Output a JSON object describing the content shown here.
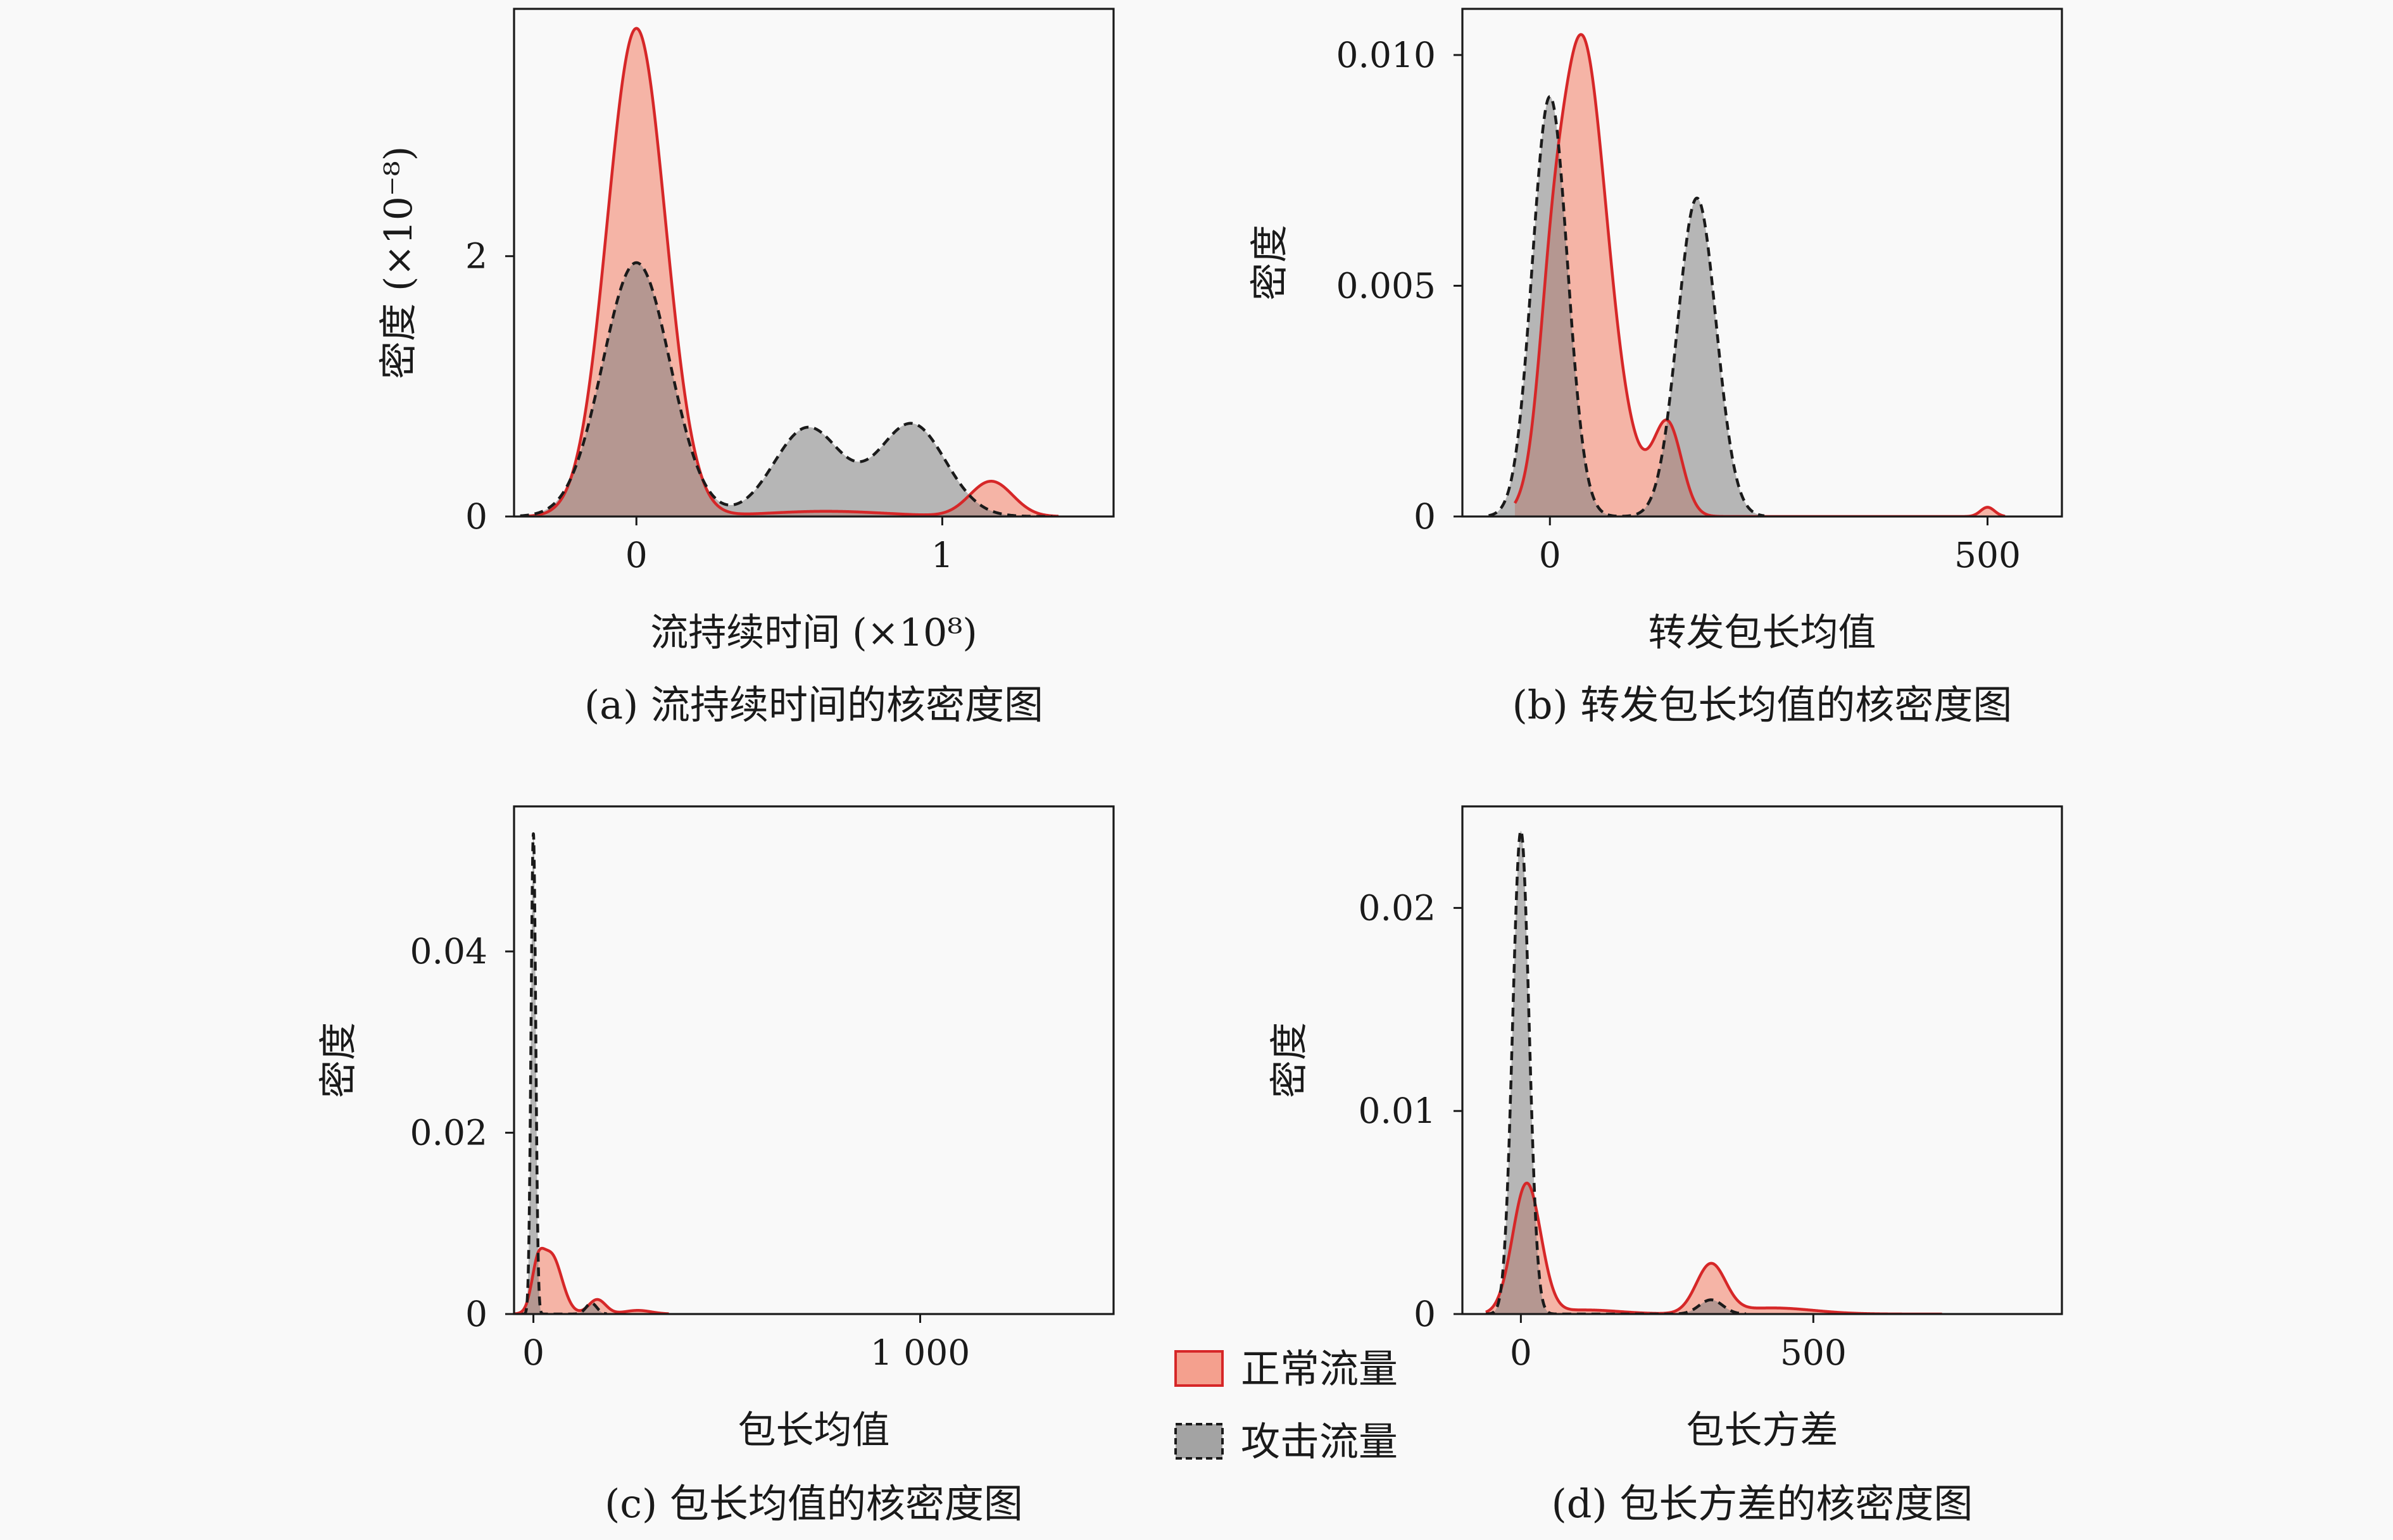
{
  "colors": {
    "normal_fill": "#f4a08e",
    "normal_line": "#d62728",
    "attack_fill": "#7f7f7f",
    "attack_line": "#1a1a1a",
    "background": "#f9f9f9"
  },
  "legend": {
    "items": [
      {
        "label": "正常流量",
        "style": "normal"
      },
      {
        "label": "攻击流量",
        "style": "attack"
      }
    ]
  },
  "chart_data": [
    {
      "type": "area",
      "caption": "(a) 流持续时间的核密度图",
      "xlabel": "流持续时间 (×10⁸)",
      "ylabel": "密度 (×10⁻⁸)",
      "xlim": [
        -0.4,
        1.56
      ],
      "ylim": [
        0,
        3.9
      ],
      "xticks": [
        {
          "v": 0,
          "label": "0"
        },
        {
          "v": 1,
          "label": "1"
        }
      ],
      "yticks": [
        {
          "v": 0,
          "label": "0"
        },
        {
          "v": 2,
          "label": "2"
        }
      ],
      "series": [
        {
          "name": "正常流量",
          "style": "normal",
          "components": [
            {
              "mu": 0.0,
              "sigma": 0.095,
              "amp": 3.75
            },
            {
              "mu": 1.16,
              "sigma": 0.07,
              "amp": 0.27
            },
            {
              "mu": 0.62,
              "sigma": 0.2,
              "amp": 0.04
            }
          ],
          "range": [
            -0.38,
            1.38
          ]
        },
        {
          "name": "攻击流量",
          "style": "attack",
          "components": [
            {
              "mu": 0.0,
              "sigma": 0.11,
              "amp": 1.95
            },
            {
              "mu": 0.56,
              "sigma": 0.11,
              "amp": 0.68
            },
            {
              "mu": 0.9,
              "sigma": 0.11,
              "amp": 0.71
            }
          ],
          "range": [
            -0.38,
            1.36
          ]
        }
      ]
    },
    {
      "type": "area",
      "caption": "(b) 转发包长均值的核密度图",
      "xlabel": "转发包长均值",
      "ylabel": "密度",
      "xlim": [
        -100,
        585
      ],
      "ylim": [
        0,
        0.011
      ],
      "xticks": [
        {
          "v": 0,
          "label": "0"
        },
        {
          "v": 500,
          "label": "500"
        }
      ],
      "yticks": [
        {
          "v": 0,
          "label": "0"
        },
        {
          "v": 0.005,
          "label": "0.005"
        },
        {
          "v": 0.01,
          "label": "0.010"
        }
      ],
      "series": [
        {
          "name": "正常流量",
          "style": "normal",
          "components": [
            {
              "mu": 36,
              "sigma": 28,
              "amp": 0.0103
            },
            {
              "mu": 0,
              "sigma": 14,
              "amp": 0.0018
            },
            {
              "mu": 135,
              "sigma": 16,
              "amp": 0.0019
            },
            {
              "mu": 90,
              "sigma": 25,
              "amp": 0.0008
            },
            {
              "mu": 500,
              "sigma": 8,
              "amp": 0.0002
            }
          ],
          "range": [
            -40,
            520
          ]
        },
        {
          "name": "攻击流量",
          "style": "attack",
          "components": [
            {
              "mu": 0,
              "sigma": 20,
              "amp": 0.0091
            },
            {
              "mu": 168,
              "sigma": 22,
              "amp": 0.0069
            }
          ],
          "range": [
            -70,
            245
          ]
        }
      ]
    },
    {
      "type": "area",
      "caption": "(c) 包长均值的核密度图",
      "xlabel": "包长均值",
      "ylabel": "密度",
      "xlim": [
        -50,
        1500
      ],
      "ylim": [
        0,
        0.056
      ],
      "xticks": [
        {
          "v": 0,
          "label": "0"
        },
        {
          "v": 1000,
          "label": "1 000"
        }
      ],
      "yticks": [
        {
          "v": 0,
          "label": "0"
        },
        {
          "v": 0.02,
          "label": "0.02"
        },
        {
          "v": 0.04,
          "label": "0.04"
        }
      ],
      "series": [
        {
          "name": "正常流量",
          "style": "normal",
          "components": [
            {
              "mu": 45,
              "sigma": 28,
              "amp": 0.0066
            },
            {
              "mu": 10,
              "sigma": 15,
              "amp": 0.0035
            },
            {
              "mu": 165,
              "sigma": 22,
              "amp": 0.0016
            },
            {
              "mu": 270,
              "sigma": 35,
              "amp": 0.0004
            }
          ],
          "range": [
            -50,
            350
          ]
        },
        {
          "name": "攻击流量",
          "style": "attack",
          "components": [
            {
              "mu": 0,
              "sigma": 6,
              "amp": 0.053
            },
            {
              "mu": 150,
              "sigma": 14,
              "amp": 0.0012
            }
          ],
          "range": [
            -30,
            190
          ]
        }
      ]
    },
    {
      "type": "area",
      "caption": "(d) 包长方差的核密度图",
      "xlabel": "包长方差",
      "ylabel": "密度",
      "xlim": [
        -100,
        925
      ],
      "ylim": [
        0,
        0.025
      ],
      "xticks": [
        {
          "v": 0,
          "label": "0"
        },
        {
          "v": 500,
          "label": "500"
        }
      ],
      "yticks": [
        {
          "v": 0,
          "label": "0"
        },
        {
          "v": 0.01,
          "label": "0.01"
        },
        {
          "v": 0.02,
          "label": "0.02"
        }
      ],
      "series": [
        {
          "name": "正常流量",
          "style": "normal",
          "components": [
            {
              "mu": 10,
              "sigma": 24,
              "amp": 0.0064
            },
            {
              "mu": 325,
              "sigma": 25,
              "amp": 0.0024
            },
            {
              "mu": 430,
              "sigma": 70,
              "amp": 0.0003
            },
            {
              "mu": 110,
              "sigma": 60,
              "amp": 0.0002
            }
          ],
          "range": [
            -60,
            720
          ]
        },
        {
          "name": "攻击流量",
          "style": "attack",
          "components": [
            {
              "mu": 0,
              "sigma": 14,
              "amp": 0.0238
            },
            {
              "mu": 325,
              "sigma": 20,
              "amp": 0.0007
            }
          ],
          "range": [
            -60,
            385
          ]
        }
      ]
    }
  ]
}
